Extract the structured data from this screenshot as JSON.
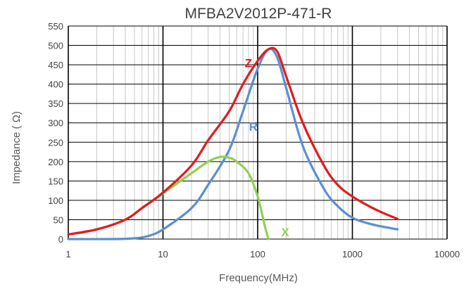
{
  "chart_data": {
    "type": "line",
    "title": "MFBA2V2012P-471-R",
    "xlabel": "Frequency(MHz)",
    "ylabel": "Impedance ( Ω)",
    "x_scale": "log",
    "xlim": [
      1,
      10000
    ],
    "ylim": [
      0,
      550
    ],
    "x_ticks": [
      1,
      10,
      100,
      1000,
      10000
    ],
    "x_tick_labels": [
      "1",
      "10",
      "100",
      "1000",
      "10000"
    ],
    "y_ticks": [
      0,
      50,
      100,
      150,
      200,
      250,
      300,
      350,
      400,
      450,
      500,
      550
    ],
    "y_tick_labels": [
      "0",
      "50",
      "100",
      "150",
      "200",
      "250",
      "300",
      "350",
      "400",
      "450",
      "500",
      "550"
    ],
    "grid": true,
    "legend": "none",
    "series": [
      {
        "name": "Z",
        "color": "#e31a1c",
        "points": [
          [
            1,
            12
          ],
          [
            2,
            25
          ],
          [
            4,
            50
          ],
          [
            6,
            80
          ],
          [
            10,
            120
          ],
          [
            20,
            190
          ],
          [
            30,
            255
          ],
          [
            50,
            330
          ],
          [
            70,
            400
          ],
          [
            100,
            460
          ],
          [
            130,
            490
          ],
          [
            160,
            485
          ],
          [
            200,
            420
          ],
          [
            300,
            300
          ],
          [
            500,
            190
          ],
          [
            700,
            140
          ],
          [
            1000,
            110
          ],
          [
            1500,
            85
          ],
          [
            2000,
            70
          ],
          [
            3000,
            52
          ]
        ]
      },
      {
        "name": "R",
        "color": "#5b8fd0",
        "points": [
          [
            1,
            0
          ],
          [
            3,
            0
          ],
          [
            5,
            2
          ],
          [
            7,
            8
          ],
          [
            10,
            25
          ],
          [
            20,
            80
          ],
          [
            30,
            140
          ],
          [
            50,
            230
          ],
          [
            70,
            330
          ],
          [
            100,
            440
          ],
          [
            130,
            490
          ],
          [
            160,
            470
          ],
          [
            200,
            390
          ],
          [
            300,
            240
          ],
          [
            500,
            130
          ],
          [
            700,
            85
          ],
          [
            1000,
            55
          ],
          [
            1500,
            40
          ],
          [
            2000,
            33
          ],
          [
            3000,
            25
          ]
        ]
      },
      {
        "name": "X",
        "color": "#8fd14f",
        "points": [
          [
            1,
            12
          ],
          [
            2,
            25
          ],
          [
            4,
            50
          ],
          [
            6,
            80
          ],
          [
            10,
            118
          ],
          [
            20,
            170
          ],
          [
            30,
            200
          ],
          [
            40,
            212
          ],
          [
            50,
            210
          ],
          [
            60,
            200
          ],
          [
            80,
            170
          ],
          [
            100,
            110
          ],
          [
            120,
            30
          ],
          [
            130,
            0
          ]
        ]
      }
    ],
    "annotations": [
      {
        "text": "Z",
        "series": "Z",
        "x": 80,
        "y": 455
      },
      {
        "text": "R",
        "series": "R",
        "x": 90,
        "y": 290
      },
      {
        "text": "X",
        "series": "X",
        "x": 195,
        "y": 18
      }
    ]
  }
}
